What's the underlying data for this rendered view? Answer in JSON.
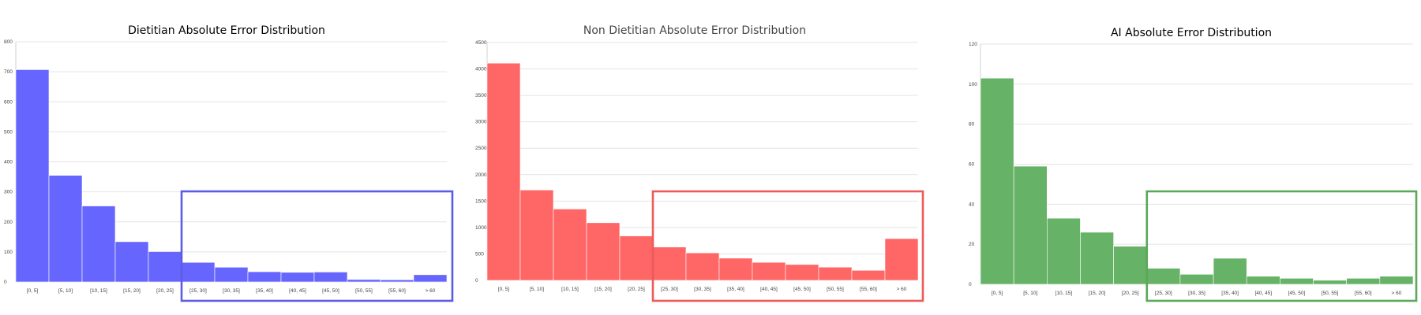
{
  "chart_data": [
    {
      "type": "bar",
      "title": "Dietitian Absolute Error Distribution",
      "title_color": "#000000",
      "color": "#6666ff",
      "highlight_color": "#5b5be6",
      "categories": [
        "[0, 5]",
        "[5, 10]",
        "[10, 15]",
        "[15, 20]",
        "[20, 25]",
        "[25, 30]",
        "[30, 35]",
        "[35, 40]",
        "[40, 45]",
        "[45, 50]",
        "[50, 55]",
        "[55, 60]",
        "> 60"
      ],
      "values": [
        707,
        355,
        253,
        134,
        101,
        65,
        49,
        34,
        32,
        33,
        8,
        7,
        24
      ],
      "ylim": [
        0,
        800
      ],
      "yticks": [
        0,
        100,
        200,
        300,
        400,
        500,
        600,
        700,
        800
      ],
      "grid": true,
      "highlight": {
        "from_category": "[25, 30]",
        "to_category": "> 60"
      }
    },
    {
      "type": "bar",
      "title": "Non Dietitian Absolute Error Distribution",
      "title_color": "#444444",
      "color": "#ff6666",
      "highlight_color": "#ec5a5a",
      "categories": [
        "[0, 5]",
        "[5, 10]",
        "[10, 15]",
        "[15, 20]",
        "[20, 25]",
        "[25, 30]",
        "[30, 35]",
        "[35, 40]",
        "[40, 45]",
        "[45, 50]",
        "[50, 55]",
        "[55, 60]",
        "> 60"
      ],
      "values": [
        4110,
        1710,
        1350,
        1090,
        840,
        630,
        520,
        420,
        340,
        300,
        250,
        190,
        790
      ],
      "ylim": [
        0,
        4500
      ],
      "yticks": [
        0,
        500,
        1000,
        1500,
        2000,
        2500,
        3000,
        3500,
        4000,
        4500
      ],
      "grid": true,
      "highlight": {
        "from_category": "[25, 30]",
        "to_category": "> 60"
      }
    },
    {
      "type": "bar",
      "title": "AI Absolute Error Distribution",
      "title_color": "#000000",
      "color": "#66b266",
      "highlight_color": "#5aa85a",
      "categories": [
        "[0, 5]",
        "[5, 10]",
        "[10, 15]",
        "[15, 20]",
        "[20, 25]",
        "[25, 30]",
        "[30, 35]",
        "[35, 40]",
        "[40, 45]",
        "[45, 50]",
        "[50, 55]",
        "[55, 60]",
        "> 60"
      ],
      "values": [
        103,
        59,
        33,
        26,
        19,
        8,
        5,
        13,
        4,
        3,
        2,
        3,
        4
      ],
      "ylim": [
        0,
        120
      ],
      "yticks": [
        0,
        20,
        40,
        60,
        80,
        100,
        120
      ],
      "grid": true,
      "highlight": {
        "from_category": "[25, 30]",
        "to_category": "> 60"
      }
    }
  ]
}
